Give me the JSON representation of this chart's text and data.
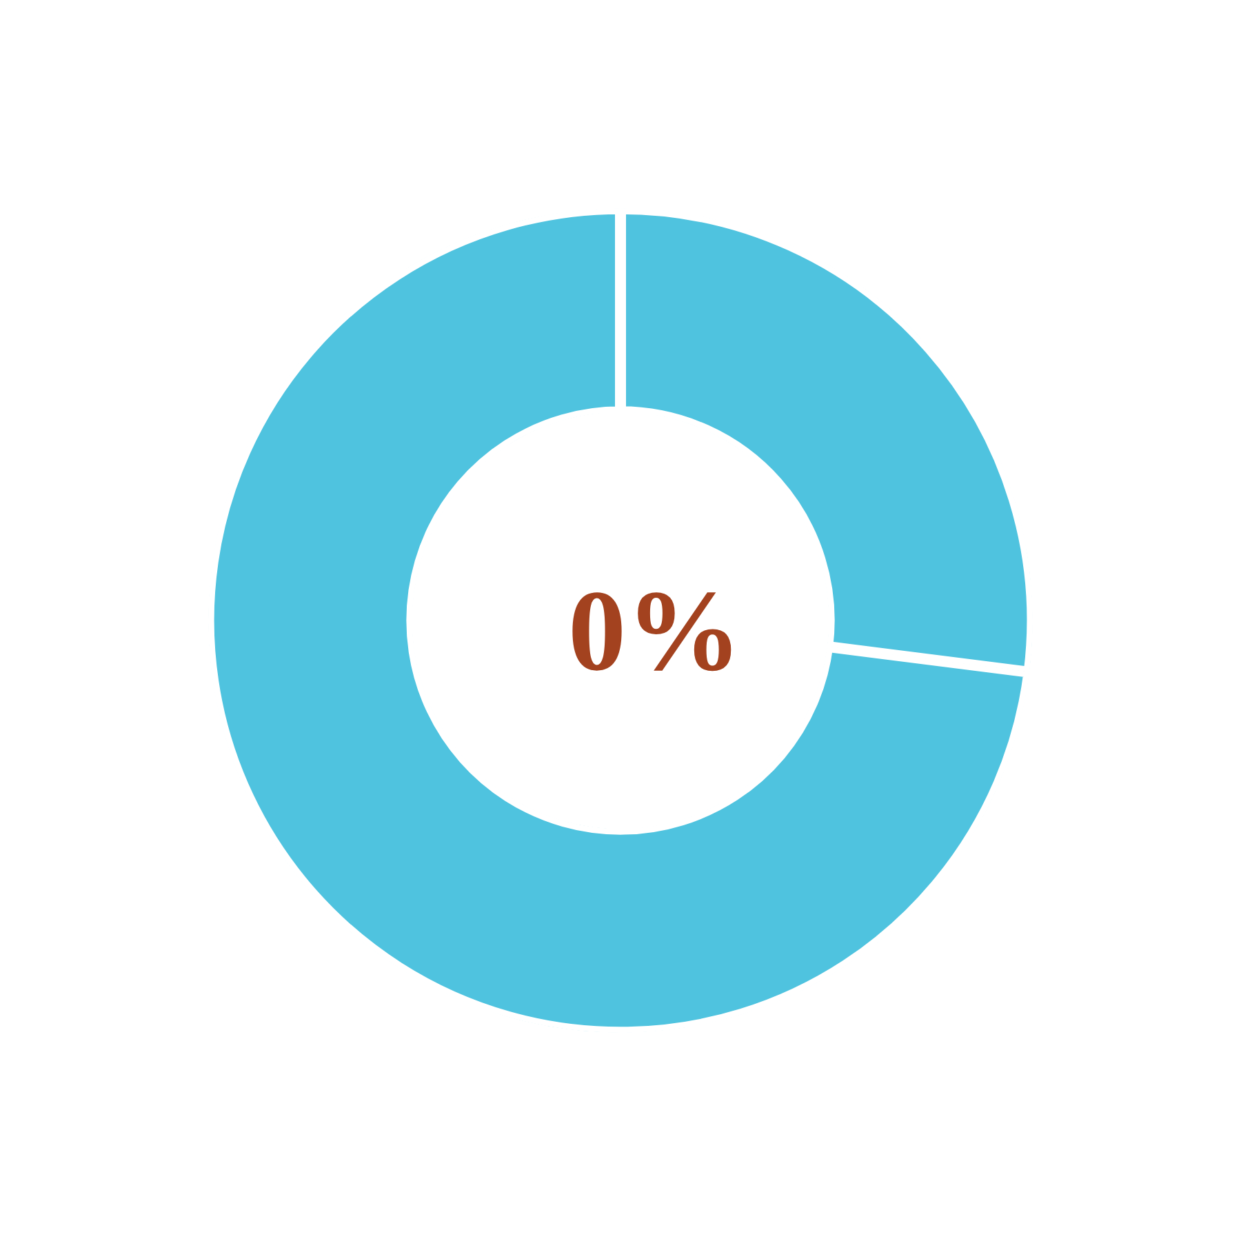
{
  "chart_data": {
    "type": "donut",
    "categories": [
      null,
      null
    ],
    "values": [
      27,
      73
    ],
    "colors": [
      "#4fc3df",
      "#4fc3df"
    ],
    "annotations": [
      "0%"
    ],
    "legend": false
  }
}
